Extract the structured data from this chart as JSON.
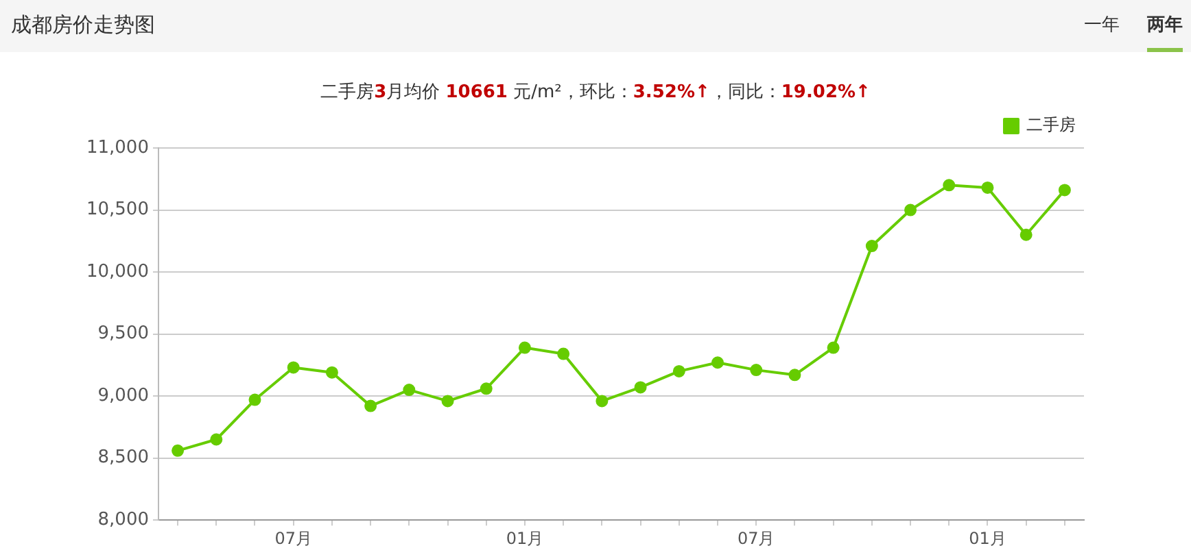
{
  "chart_data": {
    "type": "line",
    "title": "成都房价走势图",
    "subtitle": "二手房3月均价 10661 元/m²，环比：3.52%↑，同比：19.02%↑",
    "annotations": [
      "一年",
      "两年"
    ],
    "categories": [
      null,
      null,
      null,
      "07月",
      null,
      null,
      null,
      null,
      null,
      "01月",
      null,
      null,
      null,
      null,
      null,
      "07月",
      null,
      null,
      null,
      null,
      null,
      "01月",
      null,
      null
    ],
    "series": [
      {
        "name": "二手房",
        "color": "#66cc00",
        "values": [
          8560,
          8650,
          8970,
          9230,
          9190,
          8920,
          9050,
          8960,
          9060,
          9390,
          9340,
          8960,
          9070,
          9200,
          9270,
          9210,
          9170,
          9390,
          10210,
          10500,
          10700,
          10680,
          10300,
          10661
        ]
      }
    ],
    "ylim": [
      8000,
      11000
    ],
    "yticks": [
      {
        "value": 8000,
        "label": "8,000"
      },
      {
        "value": 8500,
        "label": "8,500"
      },
      {
        "value": 9000,
        "label": "9,000"
      },
      {
        "value": 9500,
        "label": "9,500"
      },
      {
        "value": 10000,
        "label": "10,000"
      },
      {
        "value": 10500,
        "label": "10,500"
      },
      {
        "value": 11000,
        "label": "11,000"
      }
    ],
    "grid": "y",
    "legend": "top right",
    "marker": "circle",
    "line_style": "solid"
  }
}
